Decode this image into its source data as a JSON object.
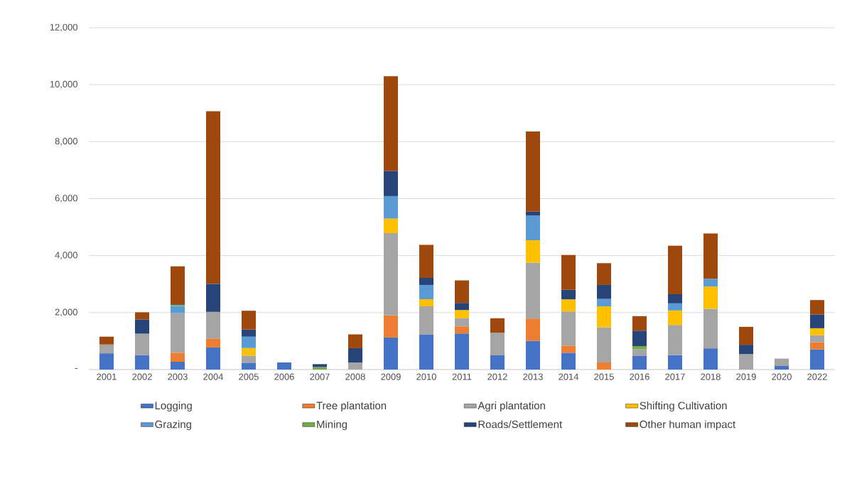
{
  "chart_data": {
    "type": "bar",
    "stacked": true,
    "grid": "y",
    "legend": "bottom",
    "categories": [
      "2001",
      "2002",
      "2003",
      "2004",
      "2005",
      "2006",
      "2007",
      "2008",
      "2009",
      "2010",
      "2011",
      "2012",
      "2013",
      "2014",
      "2015",
      "2016",
      "2017",
      "2018",
      "2019",
      "2020",
      "2022"
    ],
    "ylim": [
      0,
      12000
    ],
    "yticks": [
      {
        "value": 0,
        "label": "-"
      },
      {
        "value": 2000,
        "label": "2,000"
      },
      {
        "value": 4000,
        "label": "4,000"
      },
      {
        "value": 6000,
        "label": "6,000"
      },
      {
        "value": 8000,
        "label": "8,000"
      },
      {
        "value": 10000,
        "label": "10,000"
      },
      {
        "value": 12000,
        "label": "12,000"
      }
    ],
    "series": [
      {
        "name": "Logging",
        "color": "#4472c4",
        "values": [
          570,
          510,
          275,
          775,
          240,
          250,
          null,
          null,
          1125,
          1235,
          1265,
          500,
          1010,
          590,
          null,
          475,
          510,
          745,
          null,
          125,
          710
        ]
      },
      {
        "name": "Tree plantation",
        "color": "#ed7d31",
        "values": [
          null,
          null,
          315,
          315,
          null,
          null,
          null,
          null,
          775,
          null,
          250,
          null,
          780,
          250,
          250,
          null,
          null,
          null,
          null,
          null,
          245
        ]
      },
      {
        "name": "Agri plantation",
        "color": "#a5a5a5",
        "values": [
          310,
          750,
          1390,
          935,
          250,
          null,
          null,
          250,
          2890,
          985,
          285,
          790,
          1960,
          1200,
          1235,
          235,
          1055,
          1390,
          545,
          260,
          250
        ]
      },
      {
        "name": "Shifting Cultivation",
        "color": "#ffc000",
        "values": [
          null,
          null,
          null,
          null,
          265,
          null,
          null,
          null,
          510,
          250,
          290,
          null,
          790,
          425,
          735,
          null,
          510,
          780,
          null,
          null,
          245
        ]
      },
      {
        "name": "Grazing",
        "color": "#5b9bd5",
        "values": [
          null,
          null,
          250,
          null,
          400,
          null,
          null,
          null,
          790,
          500,
          null,
          null,
          865,
          null,
          260,
          null,
          250,
          270,
          null,
          null,
          null
        ]
      },
      {
        "name": "Mining",
        "color": "#70ad47",
        "values": [
          null,
          null,
          35,
          null,
          null,
          null,
          90,
          null,
          null,
          null,
          null,
          null,
          null,
          null,
          null,
          110,
          null,
          null,
          null,
          null,
          null
        ]
      },
      {
        "name": "Roads/Settlement",
        "color": "#264478",
        "values": [
          null,
          500,
          25,
          985,
          250,
          null,
          100,
          500,
          885,
          250,
          250,
          null,
          140,
          335,
          490,
          545,
          320,
          null,
          325,
          null,
          485
        ]
      },
      {
        "name": "Other human impact",
        "color": "#9e480e",
        "values": [
          275,
          250,
          1335,
          6060,
          660,
          null,
          null,
          485,
          3325,
          1160,
          790,
          510,
          2810,
          1225,
          765,
          510,
          1705,
          1590,
          630,
          null,
          505
        ]
      }
    ]
  }
}
